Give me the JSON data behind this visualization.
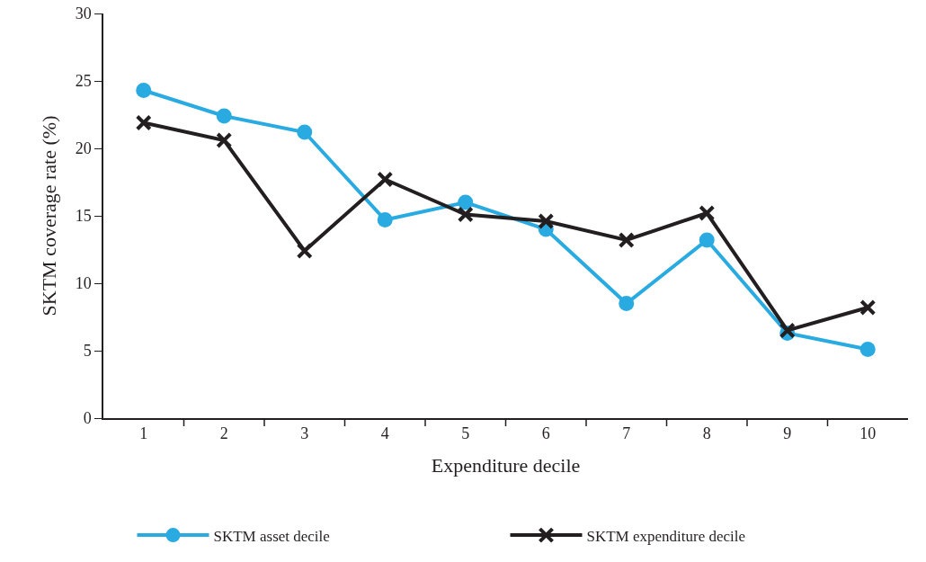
{
  "chart_data": {
    "type": "line",
    "xlabel": "Expenditure decile",
    "ylabel": "SKTM coverage rate (%)",
    "categories": [
      "1",
      "2",
      "3",
      "4",
      "5",
      "6",
      "7",
      "8",
      "9",
      "10"
    ],
    "series": [
      {
        "name": "SKTM asset decile",
        "color": "#29abe2",
        "marker": "circle",
        "values": [
          24.3,
          22.4,
          21.2,
          14.7,
          16.0,
          14.0,
          8.5,
          13.2,
          6.3,
          5.1
        ]
      },
      {
        "name": "SKTM expenditure decile",
        "color": "#231f20",
        "marker": "cross",
        "values": [
          21.9,
          20.6,
          12.4,
          17.7,
          15.1,
          14.6,
          13.2,
          15.2,
          6.5,
          8.2
        ]
      }
    ],
    "ylim": [
      0,
      30
    ],
    "yticks": [
      0,
      5,
      10,
      15,
      20,
      25,
      30
    ],
    "grid": false,
    "legend": "bottom",
    "line_style": "solid"
  }
}
